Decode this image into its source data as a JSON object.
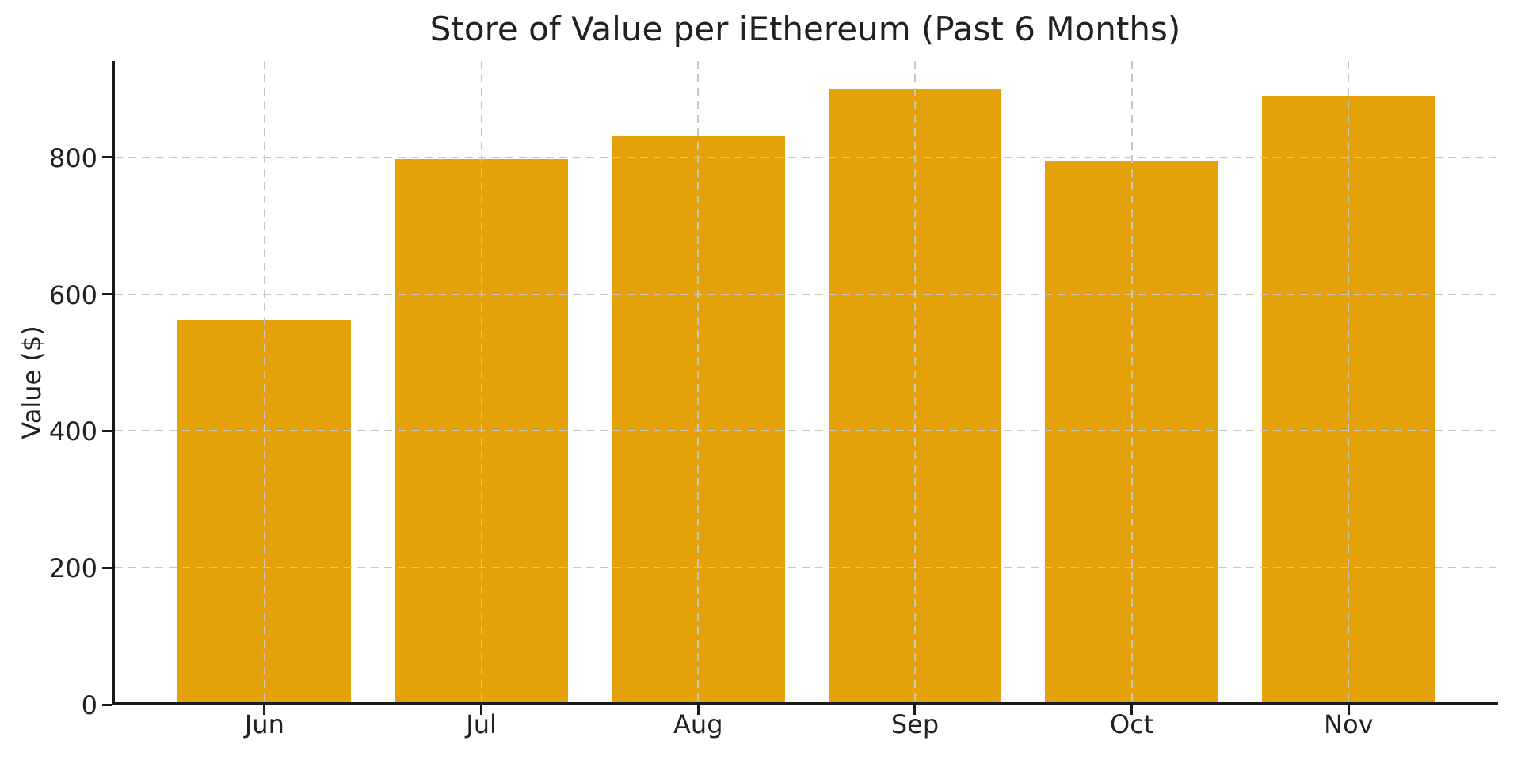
{
  "chart_data": {
    "type": "bar",
    "title": "Store of Value per iEthereum (Past 6 Months)",
    "xlabel": "",
    "ylabel": "Value ($)",
    "categories": [
      "Jun",
      "Jul",
      "Aug",
      "Sep",
      "Oct",
      "Nov"
    ],
    "values": [
      559,
      794,
      828,
      896,
      791,
      887
    ],
    "yticks": [
      0,
      200,
      400,
      600,
      800
    ],
    "ylim": [
      0,
      941
    ],
    "xlim": [
      -0.69,
      5.7
    ],
    "bar_width": 0.8,
    "grid": "dashed gridlines on, both axes, drawn above bars",
    "legend": "none",
    "spines": "left and bottom only",
    "colors": {
      "bar": "#E5A108",
      "grid": "#C6C6C6",
      "spine": "#1A1A1A",
      "text": "#212121",
      "background": "#FFFFFF"
    }
  }
}
